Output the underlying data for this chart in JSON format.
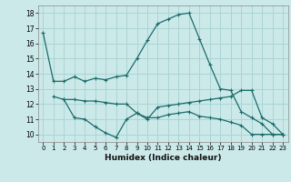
{
  "xlabel": "Humidex (Indice chaleur)",
  "ylabel": "",
  "bg_color": "#cce9e9",
  "grid_color": "#aad4d4",
  "line_color": "#1a6b6b",
  "xlim": [
    -0.5,
    23.5
  ],
  "ylim": [
    9.5,
    18.5
  ],
  "yticks": [
    10,
    11,
    12,
    13,
    14,
    15,
    16,
    17,
    18
  ],
  "xticks": [
    0,
    1,
    2,
    3,
    4,
    5,
    6,
    7,
    8,
    9,
    10,
    11,
    12,
    13,
    14,
    15,
    16,
    17,
    18,
    19,
    20,
    21,
    22,
    23
  ],
  "line1_x": [
    0,
    1,
    2,
    3,
    4,
    5,
    6,
    7,
    8,
    9,
    10,
    11,
    12,
    13,
    14,
    15,
    16,
    17,
    18,
    19,
    20,
    21,
    22,
    23
  ],
  "line1_y": [
    16.7,
    13.5,
    13.5,
    13.8,
    13.5,
    13.7,
    13.6,
    13.8,
    13.9,
    15.0,
    16.2,
    17.3,
    17.6,
    17.9,
    18.0,
    16.3,
    14.6,
    13.0,
    12.9,
    11.5,
    11.1,
    10.7,
    10.0,
    10.0
  ],
  "line2_x": [
    1,
    2,
    3,
    4,
    5,
    6,
    7,
    8,
    9,
    10,
    11,
    12,
    13,
    14,
    15,
    16,
    17,
    18,
    19,
    20,
    21,
    22,
    23
  ],
  "line2_y": [
    12.5,
    12.3,
    12.3,
    12.2,
    12.2,
    12.1,
    12.0,
    12.0,
    11.4,
    11.0,
    11.8,
    11.9,
    12.0,
    12.1,
    12.2,
    12.3,
    12.4,
    12.5,
    12.9,
    12.9,
    11.1,
    10.7,
    10.0
  ],
  "line3_x": [
    2,
    3,
    4,
    5,
    6,
    7,
    8,
    9,
    10,
    11,
    12,
    13,
    14,
    15,
    16,
    17,
    18,
    19,
    20,
    21,
    22,
    23
  ],
  "line3_y": [
    12.3,
    11.1,
    11.0,
    10.5,
    10.1,
    9.8,
    11.0,
    11.4,
    11.1,
    11.1,
    11.3,
    11.4,
    11.5,
    11.2,
    11.1,
    11.0,
    10.8,
    10.6,
    10.0,
    10.0,
    10.0,
    10.0
  ]
}
